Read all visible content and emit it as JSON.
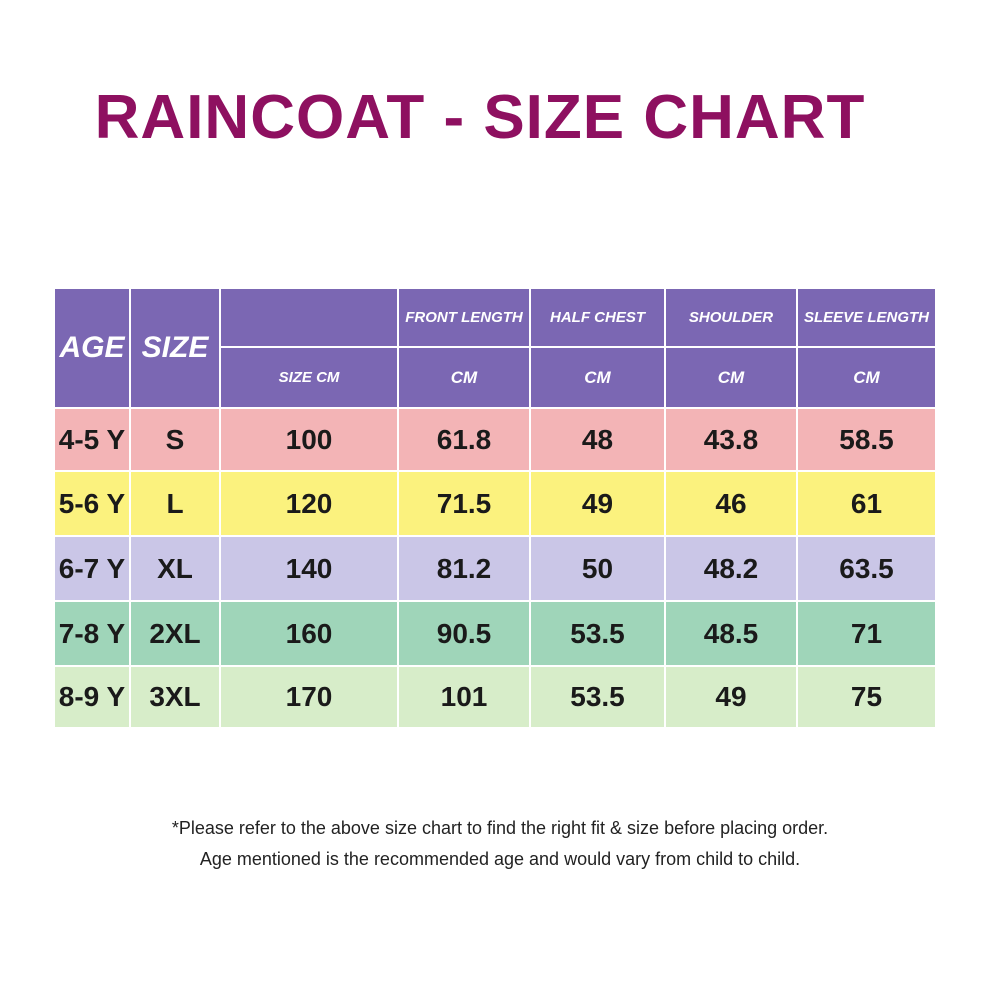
{
  "header": {
    "title": "RAINCOAT - SIZE CHART"
  },
  "table": {
    "age_label": "AGE",
    "size_label": "SIZE",
    "columns": [
      "FRONT LENGTH",
      "HALF CHEST",
      "SHOULDER",
      "SLEEVE LENGTH"
    ],
    "units": [
      "SIZE CM",
      "CM",
      "CM",
      "CM",
      "CM"
    ],
    "rows": [
      [
        "4-5 Y",
        "S",
        100,
        61.8,
        48,
        43.8,
        58.5
      ],
      [
        "5-6 Y",
        "L",
        120,
        71.5,
        49,
        46,
        61
      ],
      [
        "6-7 Y",
        "XL",
        140,
        81.2,
        50,
        48.2,
        63.5
      ],
      [
        "7-8 Y",
        "2XL",
        160,
        90.5,
        53.5,
        48.5,
        71
      ],
      [
        "8-9 Y",
        "3XL",
        170,
        101,
        53.5,
        49,
        75
      ]
    ]
  },
  "notes": [
    "*Please refer to the above size chart to find the right fit & size before placing order.",
    "Age mentioned is the recommended age and would vary from child to child."
  ]
}
